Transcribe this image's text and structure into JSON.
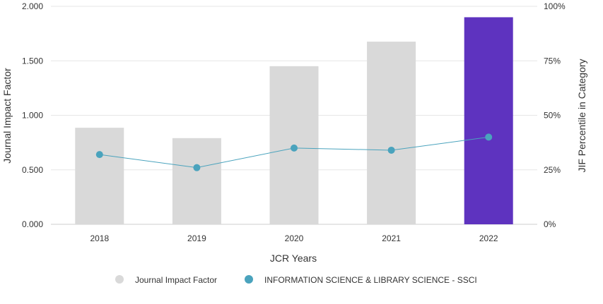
{
  "chart_data": {
    "type": "bar",
    "categories": [
      "2018",
      "2019",
      "2020",
      "2021",
      "2022"
    ],
    "series": [
      {
        "name": "Journal Impact Factor",
        "kind": "bar",
        "axis": "left",
        "values": [
          0.886,
          0.791,
          1.451,
          1.676,
          1.9
        ],
        "color": "#d9d9d9",
        "highlight_color": "#5e33bf",
        "highlight_category": "2022"
      },
      {
        "name": "INFORMATION SCIENCE & LIBRARY SCIENCE - SSCI",
        "kind": "line",
        "axis": "right",
        "values": [
          32,
          26,
          35,
          34,
          40
        ],
        "color": "#4aa3bd"
      }
    ],
    "xlabel": "JCR Years",
    "ylabel": "Journal Impact Factor",
    "ylabel_right": "JIF Percentile in Category",
    "ylim": [
      0,
      2
    ],
    "ylim_right": [
      0,
      100
    ],
    "yticks": [
      "0.000",
      "0.500",
      "1.000",
      "1.500",
      "2.000"
    ],
    "yticks_right": [
      "0%",
      "25%",
      "50%",
      "75%",
      "100%"
    ],
    "grid": true,
    "legend_position": "bottom"
  }
}
